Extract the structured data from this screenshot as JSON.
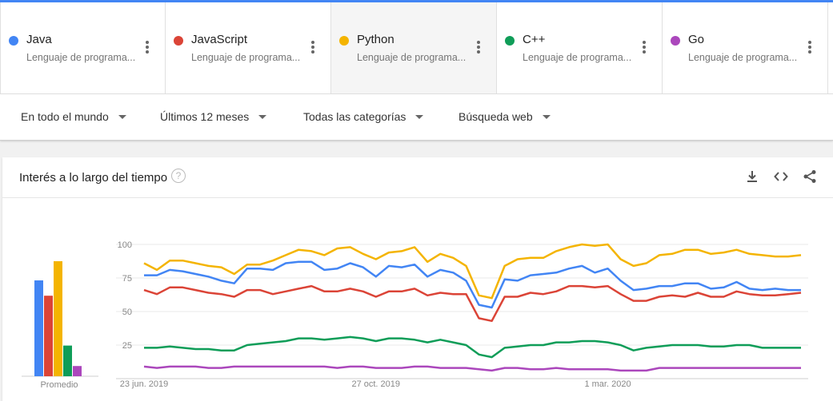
{
  "terms": [
    {
      "name": "Java",
      "subtitle": "Lenguaje de programa...",
      "color": "#4285f4",
      "selected": false
    },
    {
      "name": "JavaScript",
      "subtitle": "Lenguaje de programa...",
      "color": "#db4437",
      "selected": false
    },
    {
      "name": "Python",
      "subtitle": "Lenguaje de programa...",
      "color": "#f4b400",
      "selected": true
    },
    {
      "name": "C++",
      "subtitle": "Lenguaje de programa...",
      "color": "#0f9d58",
      "selected": false
    },
    {
      "name": "Go",
      "subtitle": "Lenguaje de programa...",
      "color": "#ab47bc",
      "selected": false
    }
  ],
  "filters": {
    "region": "En todo el mundo",
    "period": "Últimos 12 meses",
    "category": "Todas las categorías",
    "search_type": "Búsqueda web"
  },
  "card": {
    "title": "Interés a lo largo del tiempo",
    "help_icon": "?"
  },
  "chart_data": {
    "type": "line",
    "title": "Interés a lo largo del tiempo",
    "ylim": [
      0,
      100
    ],
    "y_ticks": [
      25,
      50,
      75,
      100
    ],
    "x_tick_labels": [
      "23 jun. 2019",
      "27 oct. 2019",
      "1 mar. 2020"
    ],
    "x_tick_index": [
      0,
      18,
      36
    ],
    "grid": true,
    "average_label": "Promedio",
    "averages": [
      {
        "name": "Java",
        "value": 75
      },
      {
        "name": "JavaScript",
        "value": 63
      },
      {
        "name": "Python",
        "value": 90
      },
      {
        "name": "C++",
        "value": 24
      },
      {
        "name": "Go",
        "value": 8
      }
    ],
    "series": [
      {
        "name": "Java",
        "color": "#4285f4",
        "values": [
          77,
          77,
          81,
          80,
          78,
          76,
          73,
          71,
          82,
          82,
          81,
          86,
          87,
          87,
          81,
          82,
          86,
          83,
          76,
          84,
          83,
          85,
          76,
          81,
          79,
          73,
          55,
          53,
          74,
          73,
          77,
          78,
          79,
          82,
          84,
          79,
          82,
          73,
          66,
          67,
          69,
          69,
          71,
          71,
          67,
          68,
          72,
          67,
          66,
          67,
          66,
          66
        ]
      },
      {
        "name": "JavaScript",
        "color": "#db4437",
        "values": [
          66,
          63,
          68,
          68,
          66,
          64,
          63,
          61,
          66,
          66,
          63,
          65,
          67,
          69,
          65,
          65,
          67,
          65,
          61,
          65,
          65,
          67,
          62,
          64,
          63,
          63,
          45,
          43,
          61,
          61,
          64,
          63,
          65,
          69,
          69,
          68,
          69,
          63,
          58,
          58,
          61,
          62,
          61,
          64,
          61,
          61,
          65,
          63,
          62,
          62,
          63,
          64
        ]
      },
      {
        "name": "Python",
        "color": "#f4b400",
        "values": [
          86,
          81,
          88,
          88,
          86,
          84,
          83,
          78,
          85,
          85,
          88,
          92,
          96,
          95,
          92,
          97,
          98,
          93,
          89,
          94,
          95,
          98,
          87,
          93,
          90,
          84,
          62,
          60,
          84,
          89,
          90,
          90,
          95,
          98,
          100,
          99,
          100,
          89,
          84,
          86,
          92,
          93,
          96,
          96,
          93,
          94,
          96,
          93,
          92,
          91,
          91,
          92
        ]
      },
      {
        "name": "C++",
        "color": "#0f9d58",
        "values": [
          23,
          23,
          24,
          23,
          22,
          22,
          21,
          21,
          25,
          26,
          27,
          28,
          30,
          30,
          29,
          30,
          31,
          30,
          28,
          30,
          30,
          29,
          27,
          29,
          27,
          25,
          18,
          16,
          23,
          24,
          25,
          25,
          27,
          27,
          28,
          28,
          27,
          25,
          21,
          23,
          24,
          25,
          25,
          25,
          24,
          24,
          25,
          25,
          23,
          23,
          23,
          23
        ]
      },
      {
        "name": "Go",
        "color": "#ab47bc",
        "values": [
          9,
          8,
          9,
          9,
          9,
          8,
          8,
          9,
          9,
          9,
          9,
          9,
          9,
          9,
          9,
          8,
          9,
          9,
          8,
          8,
          8,
          9,
          9,
          8,
          8,
          8,
          7,
          6,
          8,
          8,
          7,
          7,
          8,
          7,
          7,
          7,
          7,
          6,
          6,
          6,
          8,
          8,
          8,
          8,
          8,
          8,
          8,
          8,
          8,
          8,
          8,
          8
        ]
      }
    ]
  }
}
